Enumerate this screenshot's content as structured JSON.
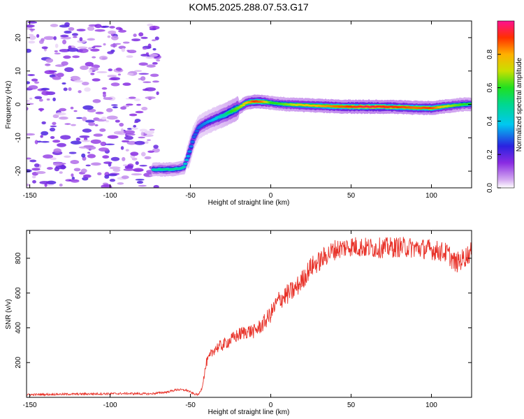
{
  "figure_title": "KOM5.2025.288.07.53.G17",
  "chart_data": [
    {
      "type": "heatmap",
      "title": "KOM5.2025.288.07.53.G17",
      "xlabel": "Height of straight line (km)",
      "ylabel": "Frequency (Hz)",
      "xlim": [
        -152,
        125
      ],
      "ylim": [
        -25,
        25
      ],
      "x_ticks": [
        -150,
        -100,
        -50,
        0,
        50,
        100
      ],
      "y_ticks": [
        -20,
        -10,
        0,
        10,
        20
      ],
      "colorbar": {
        "label": "Normalized spectral amplitude",
        "range": [
          0,
          1
        ],
        "ticks": [
          0.0,
          0.2,
          0.4,
          0.6,
          0.8
        ]
      },
      "ridge": {
        "x": [
          -73,
          -65,
          -58,
          -54,
          -51,
          -48,
          -45,
          -42,
          -38,
          -33,
          -28,
          -24,
          -20,
          -15,
          -10,
          -5,
          0,
          5,
          10,
          20,
          30,
          40,
          50,
          60,
          70,
          80,
          90,
          100,
          110,
          120,
          125
        ],
        "y": [
          -19.5,
          -19.5,
          -19.3,
          -18.8,
          -15,
          -10,
          -7,
          -6,
          -5,
          -4,
          -3,
          -2,
          -1,
          0.5,
          0.9,
          0.8,
          0.5,
          0.2,
          0,
          -0.2,
          -0.4,
          -0.6,
          -0.7,
          -0.7,
          -0.7,
          -0.8,
          -1,
          -1.1,
          -0.5,
          0,
          0.1
        ],
        "amplitude": [
          0.45,
          0.5,
          0.5,
          0.45,
          0.35,
          0.3,
          0.3,
          0.32,
          0.35,
          0.4,
          0.5,
          0.6,
          0.65,
          0.75,
          0.9,
          0.85,
          0.6,
          0.6,
          0.65,
          0.75,
          0.8,
          0.85,
          0.9,
          0.95,
          0.92,
          0.9,
          0.85,
          0.9,
          0.7,
          0.6,
          0.6
        ]
      },
      "noise_region": {
        "x_range": [
          -152,
          -70
        ],
        "y_range": [
          -25,
          25
        ],
        "amplitude_max": 0.2
      }
    },
    {
      "type": "line",
      "title": "",
      "xlabel": "Height of straight line (km)",
      "ylabel": "SNR (v/v)",
      "xlim": [
        -152,
        125
      ],
      "ylim": [
        0,
        960
      ],
      "x_ticks": [
        -150,
        -100,
        -50,
        0,
        50,
        100
      ],
      "y_ticks": [
        200,
        400,
        600,
        800
      ],
      "color": "#e8332a",
      "series": [
        {
          "name": "SNR",
          "x": [
            -152,
            -130,
            -110,
            -90,
            -75,
            -65,
            -58,
            -52,
            -48,
            -45,
            -43,
            -40,
            -35,
            -30,
            -25,
            -20,
            -15,
            -10,
            -5,
            0,
            5,
            10,
            15,
            20,
            25,
            30,
            35,
            40,
            50,
            60,
            70,
            80,
            90,
            100,
            110,
            115,
            120,
            125
          ],
          "y": [
            15,
            18,
            20,
            22,
            20,
            30,
            45,
            40,
            20,
            15,
            50,
            200,
            280,
            300,
            330,
            360,
            380,
            380,
            420,
            480,
            560,
            590,
            620,
            680,
            750,
            780,
            820,
            850,
            870,
            860,
            860,
            865,
            860,
            850,
            830,
            770,
            800,
            840
          ]
        }
      ]
    }
  ]
}
